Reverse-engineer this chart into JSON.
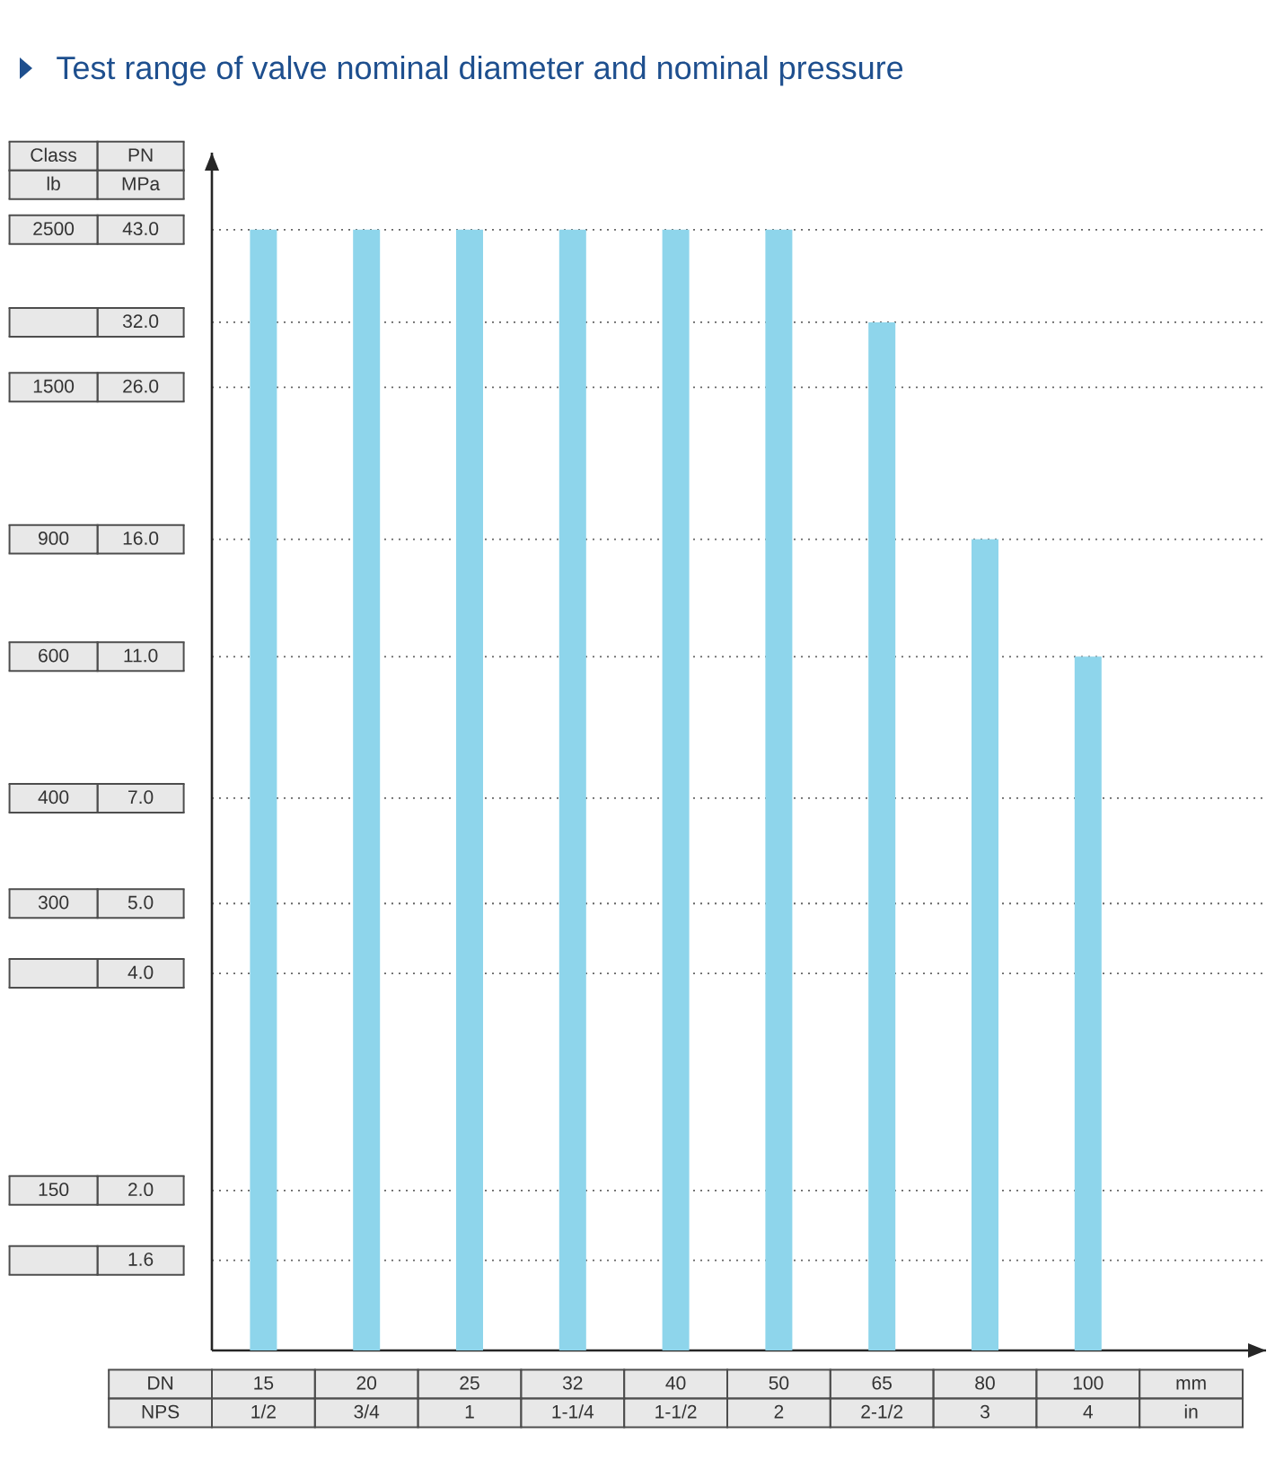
{
  "chart_data": {
    "type": "bar",
    "title": "Test range of valve nominal diameter and nominal pressure",
    "xlabel": "DN",
    "ylabel": "PN",
    "categories": [
      "15",
      "20",
      "25",
      "32",
      "40",
      "50",
      "65",
      "80",
      "100"
    ],
    "values": [
      43.0,
      43.0,
      43.0,
      43.0,
      43.0,
      43.0,
      32.0,
      16.0,
      11.0
    ],
    "color": "#8ed5eb",
    "log": true,
    "ylim": [
      1.2,
      55
    ],
    "yticks": [
      1.6,
      {
        "value": 2.0,
        "label": "2.0"
      },
      {
        "value": 4.0,
        "label": "4.0"
      },
      {
        "value": 5.0,
        "label": "5.0"
      },
      {
        "value": 7.0,
        "label": "7.0"
      },
      {
        "value": 11.0,
        "label": "11.0"
      },
      {
        "value": 16.0,
        "label": "16.0"
      },
      {
        "value": 26.0,
        "label": "26.0"
      },
      {
        "value": 32.0,
        "label": "32.0"
      },
      {
        "value": 43.0,
        "label": "43.0"
      }
    ],
    "grid": "y",
    "annotations": [
      "Class",
      "lb",
      "MPa",
      "2500",
      "1500",
      "900",
      "600",
      "400",
      "300",
      "150",
      "NPS",
      "1/2",
      "3/4",
      "1",
      "1-1/4",
      "1-1/2",
      "2",
      "2-1/2",
      "3",
      "4",
      "mm",
      "in"
    ]
  }
}
